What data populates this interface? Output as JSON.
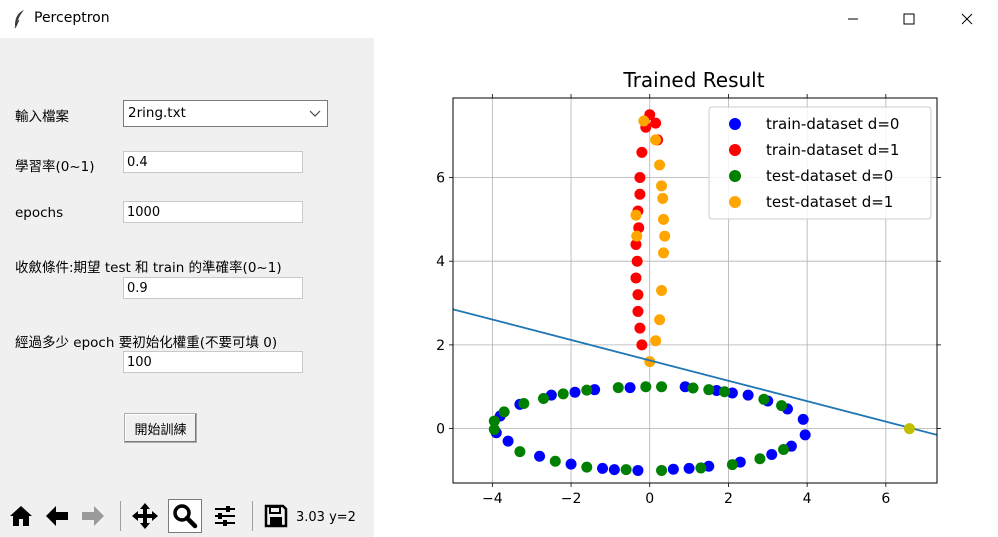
{
  "window": {
    "title": "Perceptron"
  },
  "form": {
    "file_label": "輸入檔案",
    "file_value": "2ring.txt",
    "lr_label": "學習率(0~1)",
    "lr_value": "0.4",
    "epochs_label": "epochs",
    "epochs_value": "1000",
    "conv_label": "收斂條件:期望 test 和 train 的準確率(0~1)",
    "conv_value": "0.9",
    "reinit_label": "經過多少 epoch 要初始化權重(不要可填 0)",
    "reinit_value": "100",
    "train_button": "開始訓練"
  },
  "toolbar": {
    "icons": [
      "home-icon",
      "back-arrow-icon",
      "forward-arrow-icon",
      "pan-icon",
      "zoom-icon",
      "configure-icon",
      "save-icon"
    ],
    "coords_text": "3.03 y=2"
  },
  "colors": {
    "class0_train": "#0000ff",
    "class1_train": "#ff0000",
    "class0_test": "#008000",
    "class1_test": "#ffa500",
    "boundary": "#1f77b4",
    "marker": "#bfbf00"
  },
  "chart_data": {
    "type": "scatter",
    "title": "Trained Result",
    "xlim": [
      -5,
      7.3
    ],
    "ylim": [
      -1.3,
      7.9
    ],
    "xticks": [
      -4,
      -2,
      0,
      2,
      4,
      6
    ],
    "yticks": [
      0,
      2,
      4,
      6
    ],
    "grid": true,
    "legend_position": "top-right",
    "series": [
      {
        "name": "train-dataset d=0",
        "color": "#0000ff",
        "points": [
          [
            3.9,
            0.22
          ],
          [
            3.5,
            0.47
          ],
          [
            3.0,
            0.66
          ],
          [
            2.5,
            0.8
          ],
          [
            1.7,
            0.91
          ],
          [
            0.9,
            1.0
          ],
          [
            -0.5,
            0.98
          ],
          [
            -1.4,
            0.93
          ],
          [
            -2.5,
            0.8
          ],
          [
            -3.3,
            0.58
          ],
          [
            -3.8,
            0.3
          ],
          [
            -3.6,
            -0.3
          ],
          [
            -2.8,
            -0.66
          ],
          [
            -2.0,
            -0.85
          ],
          [
            -1.2,
            -0.95
          ],
          [
            -0.3,
            -1.0
          ],
          [
            0.6,
            -0.97
          ],
          [
            1.5,
            -0.9
          ],
          [
            2.3,
            -0.8
          ],
          [
            3.1,
            -0.62
          ],
          [
            3.6,
            -0.42
          ],
          [
            3.95,
            -0.15
          ],
          [
            -3.9,
            -0.1
          ],
          [
            -1.9,
            0.87
          ],
          [
            2.1,
            0.85
          ],
          [
            -0.9,
            -0.98
          ],
          [
            1.0,
            -0.95
          ]
        ]
      },
      {
        "name": "train-dataset d=1",
        "color": "#ff0000",
        "points": [
          [
            -0.2,
            2.0
          ],
          [
            -0.3,
            2.8
          ],
          [
            -0.35,
            3.6
          ],
          [
            -0.35,
            4.4
          ],
          [
            -0.3,
            5.2
          ],
          [
            -0.25,
            6.0
          ],
          [
            -0.2,
            6.6
          ],
          [
            -0.1,
            7.2
          ],
          [
            0.0,
            7.5
          ],
          [
            0.15,
            7.3
          ],
          [
            0.2,
            6.9
          ],
          [
            -0.25,
            5.6
          ],
          [
            -0.28,
            4.8
          ],
          [
            -0.32,
            4.0
          ],
          [
            -0.3,
            3.2
          ],
          [
            -0.25,
            2.4
          ]
        ]
      },
      {
        "name": "test-dataset d=0",
        "color": "#008000",
        "points": [
          [
            -3.95,
            0.18
          ],
          [
            -3.7,
            0.4
          ],
          [
            -3.2,
            0.6
          ],
          [
            -2.2,
            0.83
          ],
          [
            -1.6,
            0.92
          ],
          [
            -0.8,
            0.98
          ],
          [
            0.3,
            1.0
          ],
          [
            1.1,
            0.97
          ],
          [
            1.9,
            0.88
          ],
          [
            2.9,
            0.7
          ],
          [
            3.35,
            0.55
          ],
          [
            -3.95,
            -0.02
          ],
          [
            -3.3,
            -0.55
          ],
          [
            -2.4,
            -0.78
          ],
          [
            -1.6,
            -0.92
          ],
          [
            -0.6,
            -0.98
          ],
          [
            0.3,
            -1.0
          ],
          [
            1.3,
            -0.94
          ],
          [
            2.1,
            -0.86
          ],
          [
            2.8,
            -0.72
          ],
          [
            3.4,
            -0.5
          ],
          [
            -2.7,
            0.72
          ],
          [
            -0.1,
            1.0
          ],
          [
            1.5,
            0.93
          ]
        ]
      },
      {
        "name": "test-dataset d=1",
        "color": "#ffa500",
        "points": [
          [
            0.0,
            1.6
          ],
          [
            0.15,
            2.1
          ],
          [
            0.25,
            2.6
          ],
          [
            0.3,
            3.3
          ],
          [
            0.35,
            4.2
          ],
          [
            0.35,
            5.0
          ],
          [
            0.3,
            5.8
          ],
          [
            0.25,
            6.3
          ],
          [
            0.15,
            6.9
          ],
          [
            -0.15,
            7.35
          ],
          [
            -0.35,
            5.1
          ],
          [
            -0.33,
            4.6
          ],
          [
            0.38,
            4.6
          ],
          [
            0.33,
            5.5
          ]
        ]
      }
    ],
    "boundary_line": {
      "x": [
        -5,
        7.3
      ],
      "y": [
        2.85,
        -0.15
      ]
    },
    "highlight_point": {
      "x": 6.6,
      "y": 0.0,
      "color": "#bfbf00"
    }
  }
}
